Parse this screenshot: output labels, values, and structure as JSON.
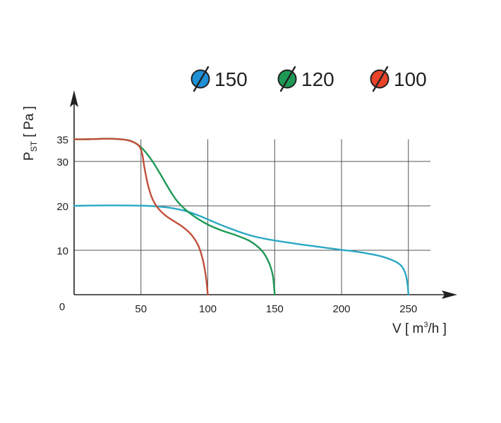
{
  "chart_data": {
    "type": "line",
    "xlabel": "V [ m³/h ]",
    "xlabel_parts": {
      "main": "V [ m",
      "sup": "3",
      "tail": "/h ]"
    },
    "ylabel": "PST [ Pa ]",
    "ylabel_parts": {
      "main": "P",
      "sub": "ST",
      "tail": " [ Pa ]"
    },
    "xlim": [
      0,
      260
    ],
    "ylim": [
      0,
      37
    ],
    "x_ticks": [
      0,
      50,
      100,
      150,
      200,
      250
    ],
    "y_ticks": [
      10,
      20,
      30,
      35
    ],
    "x_grid": [
      50,
      100,
      150,
      200,
      250
    ],
    "y_grid": [
      10,
      20,
      30
    ],
    "legend_placement": "top",
    "series": [
      {
        "name": "150",
        "color": "#2aa8c4",
        "legend_fill": "#1e90d6",
        "x": [
          0,
          20,
          40,
          55,
          65,
          75,
          85,
          95,
          105,
          115,
          125,
          135,
          150,
          170,
          190,
          200,
          215,
          230,
          240,
          245,
          248,
          249.5,
          250
        ],
        "y": [
          20,
          20.1,
          20.1,
          20,
          19.8,
          19.4,
          18.7,
          17.6,
          16.3,
          15.1,
          14.0,
          13.1,
          12.2,
          11.3,
          10.5,
          10.1,
          9.5,
          8.6,
          7.5,
          6.4,
          4.5,
          2.0,
          0
        ]
      },
      {
        "name": "120",
        "color": "#1e9955",
        "legend_fill": "#1e9955",
        "x": [
          0,
          10,
          20,
          30,
          40,
          46,
          52,
          58,
          64,
          70,
          76,
          82,
          90,
          100,
          110,
          120,
          130,
          137,
          142,
          146,
          148.5,
          149.5,
          150
        ],
        "y": [
          35,
          35,
          35.1,
          35.1,
          34.8,
          34.1,
          32.6,
          30.3,
          27.4,
          24.3,
          21.5,
          19.5,
          17.6,
          15.8,
          14.5,
          13.5,
          12.3,
          10.9,
          9.3,
          7.0,
          4.5,
          2.0,
          0
        ]
      },
      {
        "name": "100",
        "color": "#c0503a",
        "legend_fill": "#e8432a",
        "x": [
          0,
          10,
          20,
          30,
          40,
          46,
          49,
          51,
          52.5,
          55,
          58,
          62,
          68,
          75,
          82,
          88,
          93,
          96,
          98,
          99.2,
          100
        ],
        "y": [
          35,
          35,
          35.1,
          35.1,
          34.8,
          34.1,
          33.3,
          31.6,
          28.8,
          25.0,
          22.0,
          19.8,
          17.9,
          16.5,
          15.1,
          13.4,
          11.0,
          8.2,
          5.2,
          2.5,
          0
        ]
      }
    ]
  }
}
